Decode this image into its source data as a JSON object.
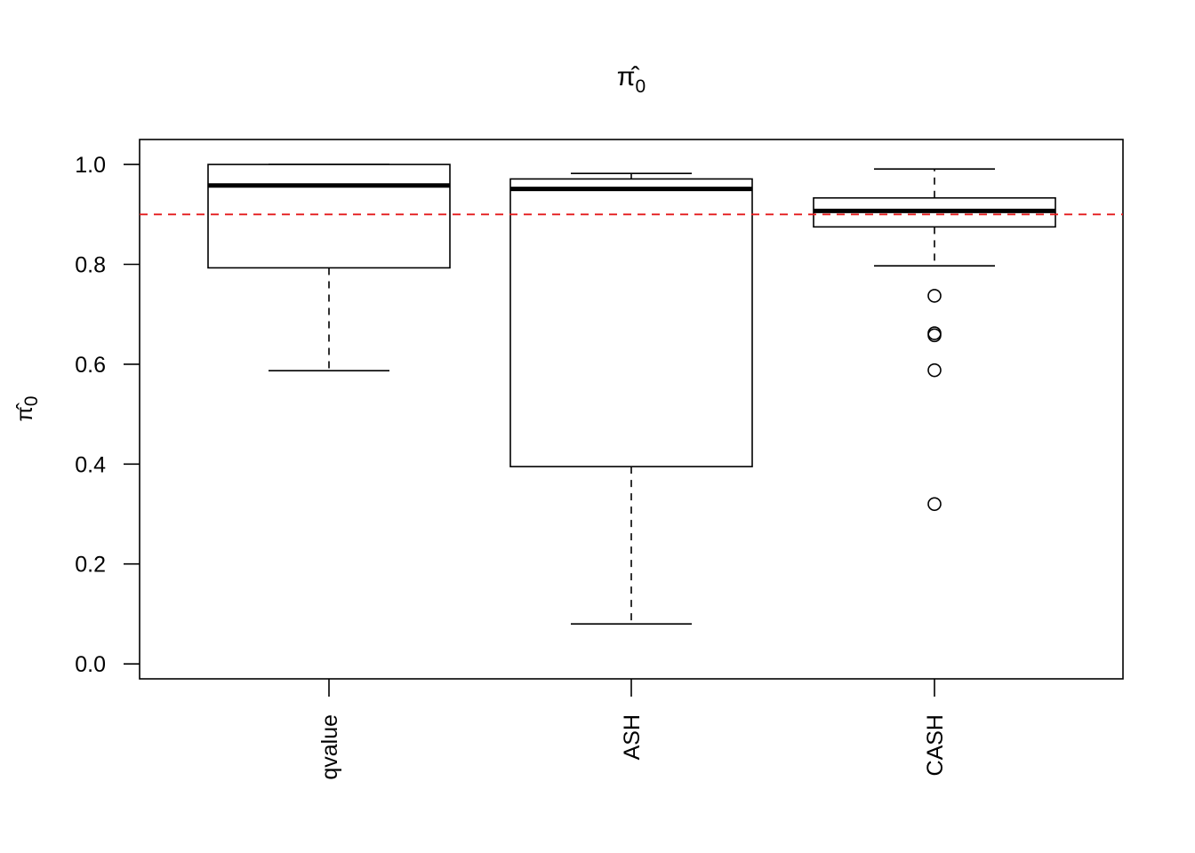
{
  "chart_data": {
    "type": "box",
    "title": {
      "main": "π̂",
      "sub": "0"
    },
    "ylabel": {
      "main": "π̂",
      "sub": "0"
    },
    "xlabel": "",
    "ylim": [
      -0.03,
      1.05
    ],
    "yticks": [
      0.0,
      0.2,
      0.4,
      0.6,
      0.8,
      1.0
    ],
    "ytick_labels": [
      "0.0",
      "0.2",
      "0.4",
      "0.6",
      "0.8",
      "1.0"
    ],
    "categories": [
      "qvalue",
      "ASH",
      "CASH"
    ],
    "boxes": [
      {
        "name": "qvalue",
        "whisker_low": 0.587,
        "q1": 0.793,
        "median": 0.958,
        "q3": 1.0,
        "whisker_high": 1.0,
        "outliers": []
      },
      {
        "name": "ASH",
        "whisker_low": 0.08,
        "q1": 0.395,
        "median": 0.951,
        "q3": 0.971,
        "whisker_high": 0.982,
        "outliers": []
      },
      {
        "name": "CASH",
        "whisker_low": 0.797,
        "q1": 0.875,
        "median": 0.907,
        "q3": 0.933,
        "whisker_high": 0.991,
        "outliers": [
          0.737,
          0.662,
          0.658,
          0.588,
          0.32
        ]
      }
    ],
    "reference_line": {
      "y": 0.9,
      "color": "#e31a1c",
      "style": "dashed"
    },
    "grid": false,
    "legend": "none"
  }
}
